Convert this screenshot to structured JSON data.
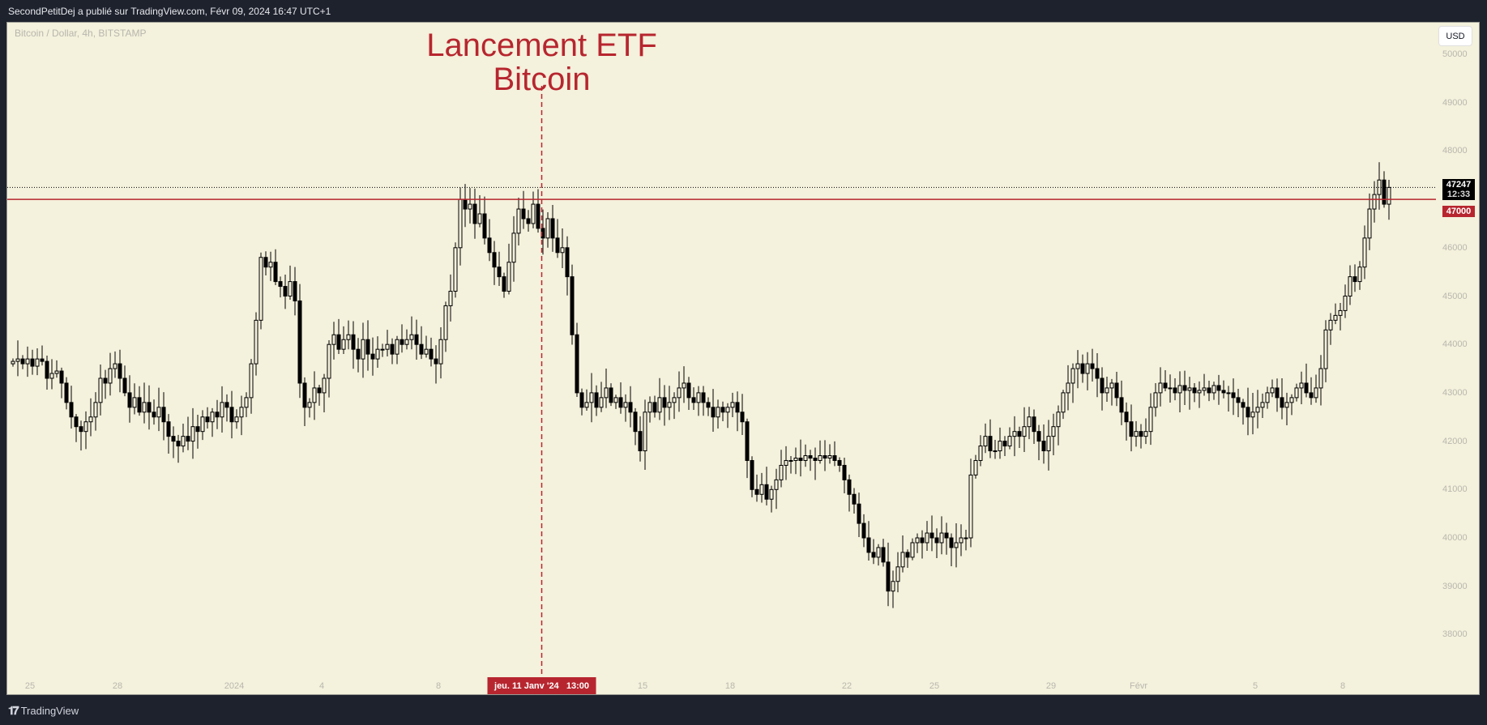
{
  "header": {
    "published": "SecondPetitDej a publié sur TradingView.com, Févr 09, 2024 16:47 UTC+1"
  },
  "symbol": "Bitcoin / Dollar, 4h, BITSTAMP",
  "currency_button": "USD",
  "annotation": {
    "line1": "Lancement ETF",
    "line2": "Bitcoin",
    "date_label": "jeu. 11 Janv '24   13:00",
    "color": "#b7262f"
  },
  "last_price": {
    "value": "47247",
    "countdown": "12:33"
  },
  "level_line": {
    "value": "47000",
    "color": "#b7262f"
  },
  "footer": {
    "brand": "TradingView",
    "logo": "17"
  },
  "chart_data": {
    "type": "candlestick",
    "interval": "4h",
    "start": "2023-12-24 08:00",
    "ylim": [
      37000,
      50500
    ],
    "y_ticks": [
      38000,
      39000,
      40000,
      41000,
      42000,
      43000,
      44000,
      45000,
      46000,
      47000,
      48000,
      49000,
      50000
    ],
    "x_ticks": [
      {
        "label": "25",
        "date": "2023-12-25"
      },
      {
        "label": "28",
        "date": "2023-12-28"
      },
      {
        "label": "2024",
        "date": "2024-01-01"
      },
      {
        "label": "4",
        "date": "2024-01-04"
      },
      {
        "label": "8",
        "date": "2024-01-08"
      },
      {
        "label": "15",
        "date": "2024-01-15"
      },
      {
        "label": "18",
        "date": "2024-01-18"
      },
      {
        "label": "22",
        "date": "2024-01-22"
      },
      {
        "label": "25",
        "date": "2024-01-25"
      },
      {
        "label": "29",
        "date": "2024-01-29"
      },
      {
        "label": "Févr",
        "date": "2024-02-01"
      },
      {
        "label": "5",
        "date": "2024-02-05"
      },
      {
        "label": "8",
        "date": "2024-02-08"
      }
    ],
    "event_time": "2024-01-11 13:00",
    "horizontal_level": 47000,
    "last_price": 47247,
    "closes": [
      43650,
      43700,
      43600,
      43700,
      43550,
      43700,
      43650,
      43300,
      43400,
      43450,
      43200,
      42800,
      42500,
      42300,
      42200,
      42400,
      42500,
      42800,
      43300,
      43200,
      43500,
      43600,
      43300,
      43000,
      42700,
      42900,
      42600,
      42800,
      42600,
      42500,
      42700,
      42400,
      42100,
      42000,
      41900,
      42100,
      42000,
      42300,
      42200,
      42500,
      42400,
      42600,
      42500,
      42800,
      42700,
      42400,
      42500,
      42700,
      42900,
      43600,
      44500,
      45800,
      45600,
      45700,
      45300,
      45200,
      45000,
      45300,
      44900,
      43200,
      42700,
      42800,
      43100,
      43000,
      43300,
      44000,
      44200,
      43900,
      44100,
      44200,
      43900,
      43700,
      44100,
      43800,
      43700,
      43900,
      43900,
      44000,
      43800,
      44100,
      44000,
      44100,
      44200,
      44000,
      43800,
      43900,
      43700,
      43600,
      44100,
      44800,
      45100,
      46000,
      47000,
      46800,
      46900,
      46500,
      46700,
      46200,
      45900,
      45600,
      45400,
      45100,
      45700,
      46300,
      46800,
      46600,
      46500,
      46900,
      46400,
      46200,
      46600,
      46200,
      45900,
      46000,
      45400,
      44200,
      43000,
      42700,
      42800,
      43000,
      42700,
      42900,
      43100,
      42800,
      42900,
      42700,
      42800,
      42600,
      42200,
      41800,
      42600,
      42800,
      42600,
      42900,
      42700,
      42800,
      42900,
      43100,
      43200,
      42900,
      42800,
      43000,
      42800,
      42700,
      42500,
      42700,
      42600,
      42700,
      42800,
      42600,
      42400,
      41600,
      41000,
      40900,
      41100,
      40800,
      41000,
      41200,
      41500,
      41600,
      41600,
      41650,
      41600,
      41700,
      41650,
      41600,
      41700,
      41650,
      41700,
      41600,
      41500,
      41200,
      40900,
      40700,
      40300,
      40000,
      39700,
      39600,
      39800,
      39500,
      38900,
      39100,
      39400,
      39700,
      39600,
      39900,
      40000,
      39900,
      40100,
      40000,
      39900,
      40100,
      40000,
      39800,
      39900,
      40000,
      40000,
      41300,
      41600,
      41900,
      42100,
      41800,
      41800,
      42000,
      41900,
      42100,
      42200,
      42100,
      42300,
      42500,
      42200,
      42000,
      41800,
      42100,
      42300,
      42600,
      43000,
      43200,
      43500,
      43600,
      43400,
      43600,
      43500,
      43300,
      43000,
      43100,
      43200,
      42900,
      42600,
      42400,
      42100,
      42200,
      42100,
      42200,
      42700,
      43000,
      43200,
      43100,
      43100,
      43000,
      43150,
      43050,
      43100,
      43000,
      43050,
      43100,
      43000,
      43150,
      43050,
      43000,
      43000,
      42900,
      42800,
      42700,
      42500,
      42600,
      42700,
      42800,
      43000,
      43100,
      42900,
      42700,
      42800,
      42900,
      43100,
      43200,
      43000,
      42900,
      43100,
      43500,
      44300,
      44500,
      44600,
      44700,
      45000,
      45400,
      45300,
      45600,
      46200,
      46800,
      47100,
      47400,
      46900,
      47247
    ]
  }
}
